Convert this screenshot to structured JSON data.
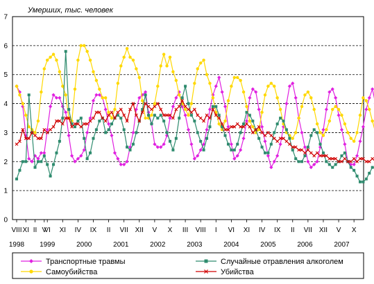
{
  "chart_data": {
    "type": "line",
    "ylabel": "Умерших, тыс. человек",
    "ylim": [
      0,
      7
    ],
    "yticks": [
      "0",
      "1",
      "2",
      "3",
      "4",
      "5",
      "6",
      "7"
    ],
    "grid": "horizontal-dashed",
    "legend_position": "bottom",
    "x_start": "1998-08",
    "x_end": "2007-12",
    "month_ticks": [
      {
        "label": "VIII",
        "date": "1998-08"
      },
      {
        "label": "XI",
        "date": "1998-11"
      },
      {
        "label": "II",
        "date": "1999-02"
      },
      {
        "label": "V",
        "date": "1999-05"
      },
      {
        "label": "VI",
        "date": "1999-06"
      },
      {
        "label": "XI",
        "date": "1999-11"
      },
      {
        "label": "IV",
        "date": "2000-04"
      },
      {
        "label": "IX",
        "date": "2000-09"
      },
      {
        "label": "II",
        "date": "2001-02"
      },
      {
        "label": "VII",
        "date": "2001-07"
      },
      {
        "label": "XII",
        "date": "2001-12"
      },
      {
        "label": "V",
        "date": "2002-05"
      },
      {
        "label": "X",
        "date": "2002-10"
      },
      {
        "label": "III",
        "date": "2003-03"
      },
      {
        "label": "VIII",
        "date": "2003-08"
      },
      {
        "label": "I",
        "date": "2004-01"
      },
      {
        "label": "VI",
        "date": "2004-06"
      },
      {
        "label": "XI",
        "date": "2004-11"
      },
      {
        "label": "IV",
        "date": "2005-04"
      },
      {
        "label": "IX",
        "date": "2005-09"
      },
      {
        "label": "II",
        "date": "2006-02"
      },
      {
        "label": "VII",
        "date": "2006-07"
      },
      {
        "label": "XII",
        "date": "2006-12"
      },
      {
        "label": "V",
        "date": "2007-05"
      },
      {
        "label": "X",
        "date": "2007-10"
      }
    ],
    "year_labels": [
      {
        "label": "1998",
        "date": "1998-08"
      },
      {
        "label": "1999",
        "date": "1999-06"
      },
      {
        "label": "2000",
        "date": "2000-06"
      },
      {
        "label": "2001",
        "date": "2001-06"
      },
      {
        "label": "2002",
        "date": "2002-06"
      },
      {
        "label": "2003",
        "date": "2003-06"
      },
      {
        "label": "2004",
        "date": "2004-06"
      },
      {
        "label": "2005",
        "date": "2005-06"
      },
      {
        "label": "2006",
        "date": "2006-06"
      },
      {
        "label": "2007",
        "date": "2007-06"
      }
    ],
    "series": [
      {
        "name": "Транспортные травмы",
        "color": "#e020e0",
        "marker": "diamond",
        "values": [
          4.6,
          4.4,
          3.9,
          2.9,
          2.1,
          2.0,
          2.2,
          2.1,
          2.3,
          2.3,
          3.1,
          3.9,
          4.3,
          4.2,
          4.2,
          3.9,
          3.7,
          2.9,
          2.2,
          2.0,
          2.1,
          2.2,
          2.4,
          3.0,
          3.5,
          4.1,
          4.3,
          4.3,
          4.2,
          3.8,
          3.3,
          2.9,
          2.3,
          2.1,
          1.9,
          1.9,
          2.0,
          2.5,
          3.0,
          3.8,
          4.2,
          4.3,
          4.4,
          3.7,
          3.3,
          2.6,
          2.5,
          2.5,
          2.6,
          2.9,
          3.5,
          3.9,
          4.2,
          4.4,
          3.9,
          3.6,
          3.1,
          2.6,
          2.1,
          2.2,
          2.4,
          2.6,
          3.1,
          3.8,
          4.3,
          4.6,
          4.9,
          4.4,
          3.9,
          3.2,
          2.6,
          2.1,
          2.2,
          2.4,
          2.8,
          3.4,
          4.2,
          4.5,
          4.4,
          3.8,
          3.2,
          2.7,
          2.2,
          1.8,
          2.0,
          2.2,
          2.6,
          3.2,
          4.0,
          4.6,
          4.7,
          4.2,
          3.5,
          3.0,
          2.5,
          2.0,
          1.8,
          1.9,
          2.0,
          2.5,
          3.1,
          3.8,
          4.4,
          4.5,
          4.2,
          3.6,
          3.1,
          2.6,
          2.0,
          1.9,
          1.9,
          2.2,
          2.7,
          3.2,
          3.8,
          4.2,
          4.5,
          4.0,
          3.4,
          3.2
        ]
      },
      {
        "name": "Самоубийства",
        "color": "#ffd800",
        "marker": "circle",
        "values": [
          4.6,
          4.3,
          4.0,
          3.6,
          3.2,
          3.1,
          3.0,
          3.4,
          4.4,
          5.2,
          5.5,
          5.6,
          5.7,
          5.5,
          5.1,
          4.6,
          4.3,
          3.5,
          3.4,
          4.5,
          5.5,
          6.0,
          6.0,
          5.8,
          5.5,
          5.1,
          4.8,
          4.5,
          4.2,
          4.2,
          3.7,
          3.5,
          3.8,
          4.7,
          5.3,
          5.6,
          5.9,
          5.6,
          5.5,
          5.2,
          4.9,
          4.1,
          3.5,
          3.5,
          3.6,
          4.0,
          4.6,
          5.3,
          5.7,
          5.3,
          5.6,
          5.1,
          4.8,
          4.3,
          4.0,
          3.8,
          3.6,
          4.0,
          4.7,
          5.2,
          5.4,
          5.5,
          5.0,
          4.7,
          4.2,
          3.7,
          3.3,
          3.1,
          3.4,
          4.1,
          4.6,
          4.9,
          4.9,
          4.8,
          4.4,
          3.9,
          3.4,
          3.2,
          3.0,
          3.1,
          3.7,
          4.3,
          4.6,
          4.7,
          4.6,
          4.2,
          3.8,
          3.3,
          3.0,
          2.9,
          2.8,
          3.0,
          3.5,
          3.9,
          4.3,
          4.4,
          4.2,
          3.8,
          3.3,
          3.0,
          2.9,
          3.1,
          3.4,
          3.8,
          3.9,
          3.8,
          3.6,
          3.3,
          3.0,
          2.8,
          2.7,
          3.0,
          3.6,
          4.2,
          4.1,
          3.8,
          3.4,
          3.0,
          2.8,
          2.6
        ]
      },
      {
        "name": "Случайные отравления алкоголем",
        "color": "#2e8b6e",
        "marker": "square",
        "values": [
          1.4,
          1.7,
          2.0,
          2.0,
          4.3,
          3.0,
          1.8,
          2.0,
          2.0,
          2.2,
          1.9,
          1.5,
          1.9,
          2.3,
          2.7,
          3.5,
          5.8,
          3.8,
          3.3,
          3.2,
          3.4,
          3.5,
          2.8,
          2.1,
          2.3,
          2.8,
          3.1,
          3.4,
          3.5,
          3.0,
          3.1,
          3.3,
          3.5,
          3.6,
          3.5,
          3.1,
          2.5,
          2.4,
          2.6,
          3.0,
          3.4,
          3.8,
          4.3,
          3.6,
          3.3,
          3.6,
          3.5,
          3.6,
          3.4,
          3.0,
          2.7,
          2.4,
          2.8,
          3.5,
          4.2,
          4.6,
          4.0,
          3.6,
          3.4,
          3.0,
          2.7,
          2.4,
          2.8,
          3.2,
          3.9,
          3.9,
          3.6,
          3.2,
          2.9,
          2.6,
          2.4,
          2.4,
          2.6,
          3.0,
          3.3,
          3.7,
          3.6,
          3.4,
          3.1,
          2.8,
          2.5,
          2.3,
          2.3,
          2.6,
          3.0,
          3.3,
          3.5,
          3.4,
          3.1,
          2.8,
          2.4,
          2.1,
          2.0,
          2.0,
          2.2,
          2.5,
          2.9,
          3.1,
          3.0,
          2.6,
          2.3,
          2.0,
          1.9,
          1.8,
          1.9,
          2.0,
          2.2,
          2.3,
          2.0,
          1.8,
          1.7,
          1.5,
          1.3,
          1.3,
          1.4,
          1.6,
          1.8,
          1.8,
          1.8,
          1.8
        ]
      },
      {
        "name": "Убийства",
        "color": "#d00000",
        "marker": "cross",
        "values": [
          2.6,
          2.7,
          3.1,
          2.8,
          2.8,
          3.0,
          2.9,
          2.8,
          2.8,
          3.1,
          3.0,
          3.1,
          3.2,
          3.4,
          3.4,
          3.3,
          3.5,
          3.5,
          3.2,
          3.3,
          3.3,
          3.2,
          3.3,
          3.3,
          3.4,
          3.5,
          3.7,
          3.7,
          3.5,
          3.4,
          3.6,
          3.7,
          3.5,
          3.7,
          3.8,
          3.6,
          3.4,
          3.8,
          4.0,
          3.6,
          3.4,
          3.7,
          4.0,
          3.9,
          3.8,
          3.9,
          4.0,
          3.8,
          3.6,
          3.6,
          3.6,
          3.5,
          3.8,
          3.9,
          4.1,
          3.9,
          3.8,
          3.7,
          3.8,
          3.6,
          3.5,
          3.4,
          3.6,
          3.5,
          3.8,
          3.6,
          3.5,
          3.3,
          3.1,
          3.1,
          3.2,
          3.2,
          3.3,
          3.2,
          3.2,
          3.3,
          3.2,
          3.0,
          3.1,
          3.2,
          3.0,
          2.9,
          3.0,
          2.9,
          2.8,
          2.7,
          2.8,
          2.8,
          2.7,
          2.6,
          2.5,
          2.5,
          2.4,
          2.4,
          2.3,
          2.4,
          2.3,
          2.2,
          2.3,
          2.2,
          2.2,
          2.2,
          2.1,
          2.1,
          2.1,
          2.0,
          2.0,
          2.1,
          2.0,
          2.0,
          2.1,
          2.0,
          2.1,
          2.1,
          2.0,
          2.0,
          2.1,
          2.0,
          2.0,
          1.9
        ]
      }
    ]
  }
}
